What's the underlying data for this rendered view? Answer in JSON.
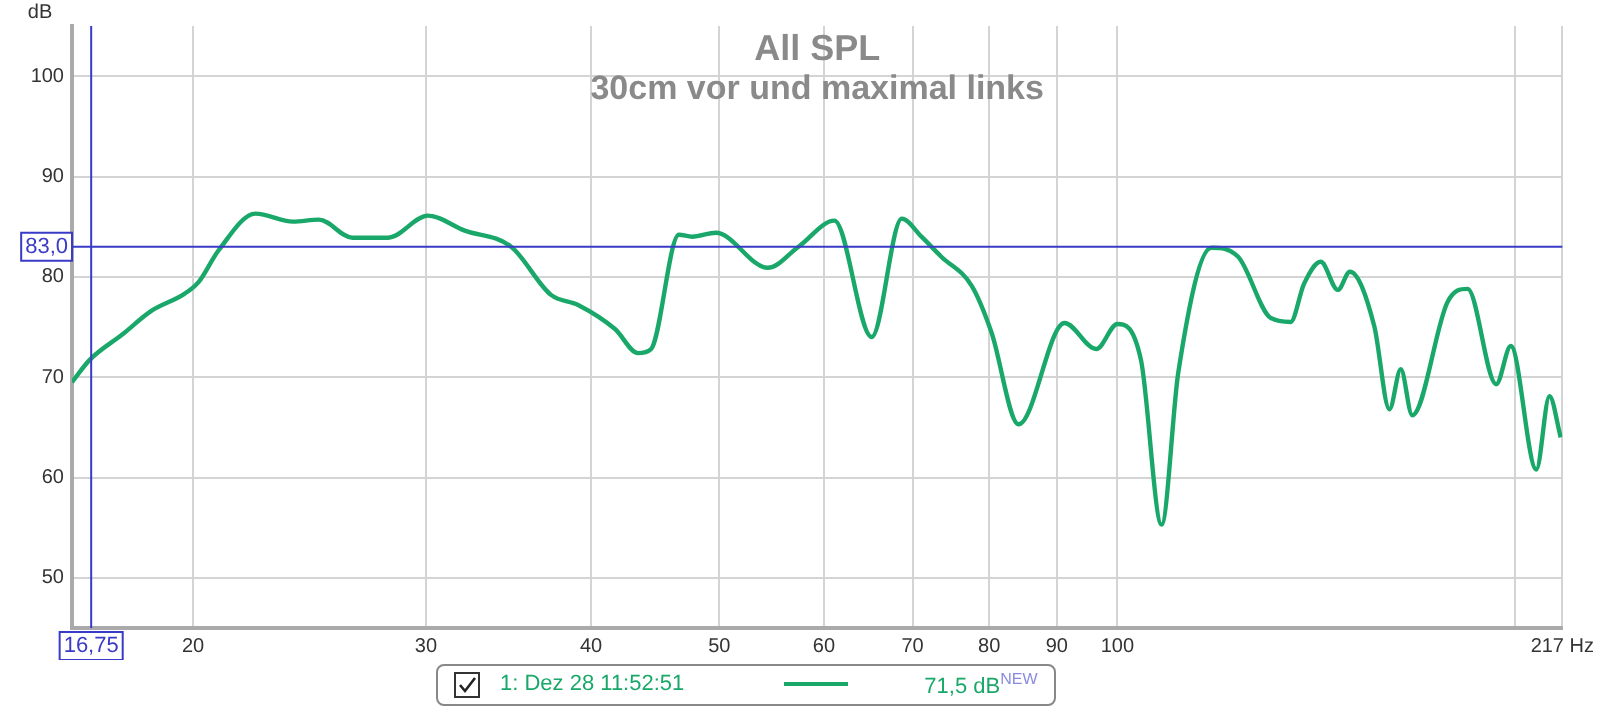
{
  "chart_data": {
    "type": "line",
    "title": "All SPL",
    "subtitle": "30cm vor und maximal links",
    "ylabel": "dB",
    "log": "x",
    "grid": true,
    "legend": "bottom",
    "marker": "none",
    "line_style": "solid",
    "xlim": [
      16.2,
      217
    ],
    "ylim": [
      45,
      105
    ],
    "xticks": [
      20,
      30,
      40,
      50,
      60,
      70,
      80,
      90,
      100,
      {
        "value": 200,
        "label": null
      },
      {
        "value": 217,
        "label": "217 Hz"
      }
    ],
    "yticks": [
      50,
      60,
      70,
      80,
      90,
      100
    ],
    "ref_lines": [
      {
        "axis": "y",
        "value": 83.0,
        "label": "83,0",
        "color": "#3a3ac8"
      },
      {
        "axis": "x",
        "value": 16.75,
        "label": "16,75",
        "color": "#3a3ac8"
      }
    ],
    "annotations": [
      "71,5 dB$^{NEW}$"
    ],
    "series": [
      {
        "name": "1: Dez 28 11:52:51",
        "color": "#1aa86a",
        "x": [
          16.2,
          16.7,
          17.7,
          18.6,
          19.7,
          20.2,
          20.9,
          22.3,
          23.8,
          24.9,
          26.4,
          28.1,
          30.1,
          32.1,
          34.8,
          37.3,
          39.1,
          41.7,
          43.4,
          44.4,
          46.6,
          47.7,
          49.7,
          54.4,
          57.4,
          61.1,
          65.2,
          68.7,
          71.1,
          73.6,
          77.6,
          80.3,
          84.2,
          91.2,
          96.4,
          100,
          104.2,
          108,
          111.2,
          117.8,
          123.4,
          130.6,
          135.2,
          138.4,
          142.5,
          146.8,
          149.9,
          156.4,
          160.6,
          163.8,
          167.1,
          177.7,
          184,
          193.4,
          198.4,
          207.4,
          212.2,
          216.4
        ],
        "values": [
          69.5,
          71.7,
          74.3,
          76.6,
          78.3,
          79.5,
          82.6,
          86.3,
          85.5,
          85.7,
          83.9,
          83.9,
          86.1,
          84.6,
          83.0,
          78.2,
          77.2,
          74.8,
          72.4,
          72.8,
          84.2,
          84.0,
          84.4,
          80.9,
          83.0,
          85.6,
          74.0,
          85.8,
          84.0,
          82.0,
          79.1,
          74.5,
          65.3,
          75.4,
          72.8,
          75.3,
          71.7,
          55.3,
          70.5,
          82.9,
          82.0,
          75.9,
          75.5,
          79.3,
          81.5,
          78.7,
          80.5,
          75.1,
          66.8,
          70.8,
          66.2,
          77.5,
          78.8,
          69.3,
          73.1,
          60.8,
          68.1,
          64.0
        ]
      }
    ]
  }
}
